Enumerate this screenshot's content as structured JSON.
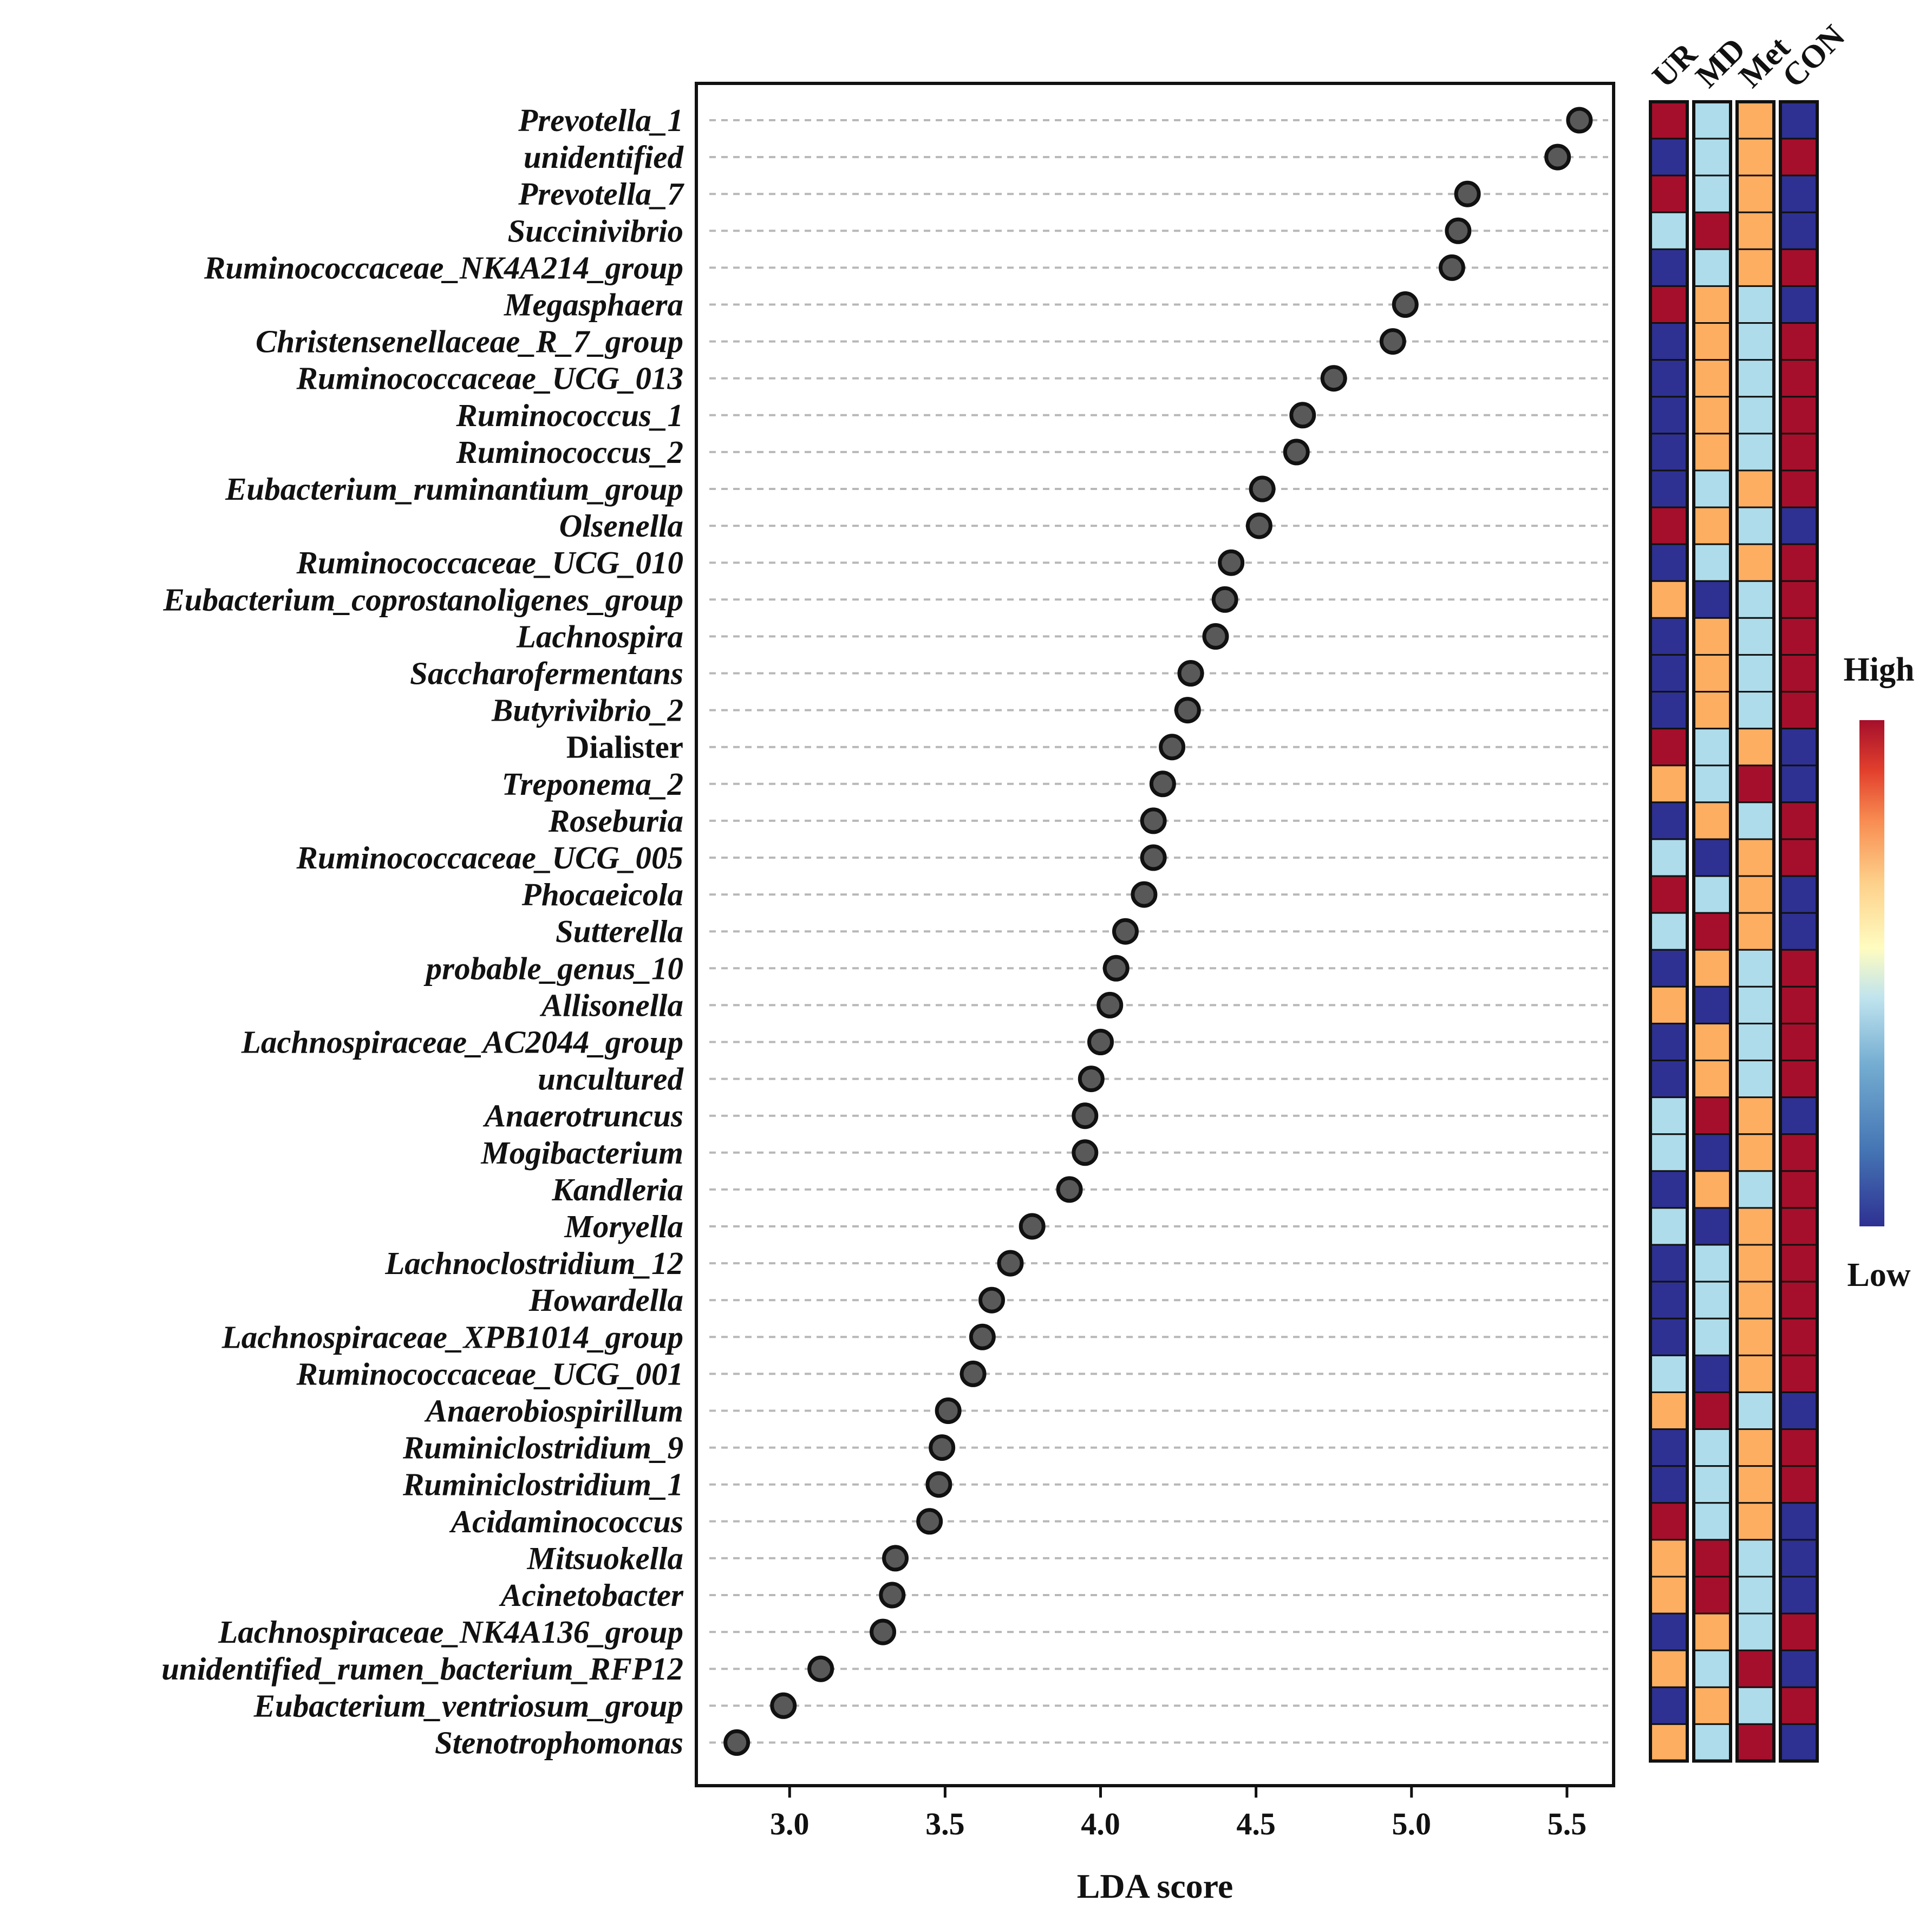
{
  "chart_data": {
    "type": "scatter",
    "xlabel": "LDA score",
    "xlim": [
      2.7,
      5.65
    ],
    "x_ticks": [
      "3.0",
      "3.5",
      "4.0",
      "4.5",
      "5.0",
      "5.5"
    ],
    "x_tick_values": [
      3.0,
      3.5,
      4.0,
      4.5,
      5.0,
      5.5
    ],
    "grid": "dashed horizontal",
    "groups": [
      "UR",
      "MD",
      "Met",
      "CON"
    ],
    "legend": {
      "high": "High",
      "low": "Low",
      "position": "right"
    },
    "color_scale": {
      "low": "#2e3192",
      "mid_low": "#aedcea",
      "mid_high": "#fdae61",
      "high": "#a50f2b"
    },
    "taxa": [
      {
        "name": "Prevotella_1",
        "lda": 5.54,
        "italic": true,
        "levels": [
          4,
          2,
          3,
          1
        ]
      },
      {
        "name": "unidentified",
        "lda": 5.47,
        "italic": true,
        "levels": [
          1,
          2,
          3,
          4
        ]
      },
      {
        "name": "Prevotella_7",
        "lda": 5.18,
        "italic": true,
        "levels": [
          4,
          2,
          3,
          1
        ]
      },
      {
        "name": "Succinivibrio",
        "lda": 5.15,
        "italic": true,
        "levels": [
          2,
          4,
          3,
          1
        ]
      },
      {
        "name": "Ruminococcaceae_NK4A214_group",
        "lda": 5.13,
        "italic": true,
        "levels": [
          1,
          2,
          3,
          4
        ]
      },
      {
        "name": "Megasphaera",
        "lda": 4.98,
        "italic": true,
        "levels": [
          4,
          3,
          2,
          1
        ]
      },
      {
        "name": "Christensenellaceae_R_7_group",
        "lda": 4.94,
        "italic": true,
        "levels": [
          1,
          3,
          2,
          4
        ]
      },
      {
        "name": "Ruminococcaceae_UCG_013",
        "lda": 4.75,
        "italic": true,
        "levels": [
          1,
          3,
          2,
          4
        ]
      },
      {
        "name": "Ruminococcus_1",
        "lda": 4.65,
        "italic": true,
        "levels": [
          1,
          3,
          2,
          4
        ]
      },
      {
        "name": "Ruminococcus_2",
        "lda": 4.63,
        "italic": true,
        "levels": [
          1,
          3,
          2,
          4
        ]
      },
      {
        "name": "Eubacterium_ruminantium_group",
        "lda": 4.52,
        "italic": true,
        "levels": [
          1,
          2,
          3,
          4
        ]
      },
      {
        "name": "Olsenella",
        "lda": 4.51,
        "italic": true,
        "levels": [
          4,
          3,
          2,
          1
        ]
      },
      {
        "name": "Ruminococcaceae_UCG_010",
        "lda": 4.42,
        "italic": true,
        "levels": [
          1,
          2,
          3,
          4
        ]
      },
      {
        "name": "Eubacterium_coprostanoligenes_group",
        "lda": 4.4,
        "italic": true,
        "levels": [
          3,
          1,
          2,
          4
        ]
      },
      {
        "name": "Lachnospira",
        "lda": 4.37,
        "italic": true,
        "levels": [
          1,
          3,
          2,
          4
        ]
      },
      {
        "name": "Saccharofermentans",
        "lda": 4.29,
        "italic": true,
        "levels": [
          1,
          3,
          2,
          4
        ]
      },
      {
        "name": "Butyrivibrio_2",
        "lda": 4.28,
        "italic": true,
        "levels": [
          1,
          3,
          2,
          4
        ]
      },
      {
        "name": "Dialister",
        "lda": 4.23,
        "italic": false,
        "levels": [
          4,
          2,
          3,
          1
        ]
      },
      {
        "name": "Treponema_2",
        "lda": 4.2,
        "italic": true,
        "levels": [
          3,
          2,
          4,
          1
        ]
      },
      {
        "name": "Roseburia",
        "lda": 4.17,
        "italic": true,
        "levels": [
          1,
          3,
          2,
          4
        ]
      },
      {
        "name": "Ruminococcaceae_UCG_005",
        "lda": 4.17,
        "italic": true,
        "levels": [
          2,
          1,
          3,
          4
        ]
      },
      {
        "name": "Phocaeicola",
        "lda": 4.14,
        "italic": true,
        "levels": [
          4,
          2,
          3,
          1
        ]
      },
      {
        "name": "Sutterella",
        "lda": 4.08,
        "italic": true,
        "levels": [
          2,
          4,
          3,
          1
        ]
      },
      {
        "name": "probable_genus_10",
        "lda": 4.05,
        "italic": true,
        "levels": [
          1,
          3,
          2,
          4
        ]
      },
      {
        "name": "Allisonella",
        "lda": 4.03,
        "italic": true,
        "levels": [
          3,
          1,
          2,
          4
        ]
      },
      {
        "name": "Lachnospiraceae_AC2044_group",
        "lda": 4.0,
        "italic": true,
        "levels": [
          1,
          3,
          2,
          4
        ]
      },
      {
        "name": "uncultured",
        "lda": 3.97,
        "italic": true,
        "levels": [
          1,
          3,
          2,
          4
        ]
      },
      {
        "name": "Anaerotruncus",
        "lda": 3.95,
        "italic": true,
        "levels": [
          2,
          4,
          3,
          1
        ]
      },
      {
        "name": "Mogibacterium",
        "lda": 3.95,
        "italic": true,
        "levels": [
          2,
          1,
          3,
          4
        ]
      },
      {
        "name": "Kandleria",
        "lda": 3.9,
        "italic": true,
        "levels": [
          1,
          3,
          2,
          4
        ]
      },
      {
        "name": "Moryella",
        "lda": 3.78,
        "italic": true,
        "levels": [
          2,
          1,
          3,
          4
        ]
      },
      {
        "name": "Lachnoclostridium_12",
        "lda": 3.71,
        "italic": true,
        "levels": [
          1,
          2,
          3,
          4
        ]
      },
      {
        "name": "Howardella",
        "lda": 3.65,
        "italic": true,
        "levels": [
          1,
          2,
          3,
          4
        ]
      },
      {
        "name": "Lachnospiraceae_XPB1014_group",
        "lda": 3.62,
        "italic": true,
        "levels": [
          1,
          2,
          3,
          4
        ]
      },
      {
        "name": "Ruminococcaceae_UCG_001",
        "lda": 3.59,
        "italic": true,
        "levels": [
          2,
          1,
          3,
          4
        ]
      },
      {
        "name": "Anaerobiospirillum",
        "lda": 3.51,
        "italic": true,
        "levels": [
          3,
          4,
          2,
          1
        ]
      },
      {
        "name": "Ruminiclostridium_9",
        "lda": 3.49,
        "italic": true,
        "levels": [
          1,
          2,
          3,
          4
        ]
      },
      {
        "name": "Ruminiclostridium_1",
        "lda": 3.48,
        "italic": true,
        "levels": [
          1,
          2,
          3,
          4
        ]
      },
      {
        "name": "Acidaminococcus",
        "lda": 3.45,
        "italic": true,
        "levels": [
          4,
          2,
          3,
          1
        ]
      },
      {
        "name": "Mitsuokella",
        "lda": 3.34,
        "italic": true,
        "levels": [
          3,
          4,
          2,
          1
        ]
      },
      {
        "name": "Acinetobacter",
        "lda": 3.33,
        "italic": true,
        "levels": [
          3,
          4,
          2,
          1
        ]
      },
      {
        "name": "Lachnospiraceae_NK4A136_group",
        "lda": 3.3,
        "italic": true,
        "levels": [
          1,
          3,
          2,
          4
        ]
      },
      {
        "name": "unidentified_rumen_bacterium_RFP12",
        "lda": 3.1,
        "italic": true,
        "levels": [
          3,
          2,
          4,
          1
        ]
      },
      {
        "name": "Eubacterium_ventriosum_group",
        "lda": 2.98,
        "italic": true,
        "levels": [
          1,
          3,
          2,
          4
        ]
      },
      {
        "name": "Stenotrophomonas",
        "lda": 2.83,
        "italic": true,
        "levels": [
          3,
          2,
          4,
          1
        ]
      }
    ]
  }
}
